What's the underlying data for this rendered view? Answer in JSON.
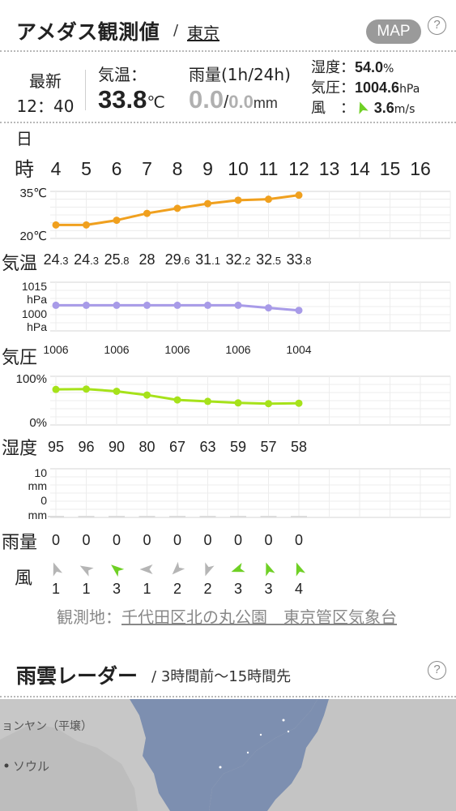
{
  "header": {
    "title": "アメダス観測値",
    "separator": "/",
    "location": "東京",
    "map_button": "MAP",
    "help": "?"
  },
  "summary": {
    "latest_label": "最新",
    "latest_time": "12：40",
    "temp_label": "気温：",
    "temp_value": "33.8",
    "temp_unit": "℃",
    "rain_label": "雨量(1h/24h)",
    "rain_1h": "0.0",
    "rain_slash": "/",
    "rain_24h": "0.0",
    "rain_unit": "mm",
    "humidity_label": "湿度：",
    "humidity_value": "54.0",
    "humidity_unit": "%",
    "pressure_label": "気圧：",
    "pressure_value": "1004.6",
    "pressure_unit": "hPa",
    "wind_label": "風　：",
    "wind_value": "3.6",
    "wind_unit": "m/s"
  },
  "chart_data": {
    "type": "line",
    "day_label": "日",
    "hour_label": "時",
    "hours": [
      "4",
      "5",
      "6",
      "7",
      "8",
      "9",
      "10",
      "11",
      "12",
      "13",
      "14",
      "15",
      "16"
    ],
    "temperature": {
      "row_label": "気温",
      "ytick_top": "35℃",
      "ytick_bottom": "20℃",
      "ylim": [
        20,
        35
      ],
      "color": "#f0a01e",
      "values": [
        24.3,
        24.3,
        25.8,
        28,
        29.6,
        31.1,
        32.2,
        32.5,
        33.8
      ],
      "labels": [
        {
          "i": "24",
          "d": ".3"
        },
        {
          "i": "24",
          "d": ".3"
        },
        {
          "i": "25",
          "d": ".8"
        },
        {
          "i": "28",
          "d": ""
        },
        {
          "i": "29",
          "d": ".6"
        },
        {
          "i": "31",
          "d": ".1"
        },
        {
          "i": "32",
          "d": ".2"
        },
        {
          "i": "32",
          "d": ".5"
        },
        {
          "i": "33",
          "d": ".8"
        }
      ]
    },
    "pressure": {
      "row_label": "気圧",
      "ytick_top": "1015",
      "ytick_top_unit": "hPa",
      "ytick_bottom": "1000",
      "ytick_bottom_unit": "hPa",
      "color": "#a89be8",
      "values": [
        1006,
        1006,
        1006,
        1006,
        1006,
        1006,
        1006,
        1005,
        1004
      ],
      "labels": [
        "1006",
        "",
        "1006",
        "",
        "1006",
        "",
        "1006",
        "",
        "1004"
      ]
    },
    "humidity": {
      "row_label": "湿度",
      "ytick_top": "100%",
      "ytick_bottom": "0%",
      "ylim": [
        0,
        100
      ],
      "color": "#a6e21a",
      "values": [
        95,
        96,
        90,
        80,
        67,
        63,
        59,
        57,
        58
      ],
      "labels": [
        "95",
        "96",
        "90",
        "80",
        "67",
        "63",
        "59",
        "57",
        "58"
      ]
    },
    "rainfall": {
      "row_label": "雨量",
      "ytick_top": "10",
      "ytick_top_unit": "mm",
      "ytick_bottom": "0",
      "ytick_bottom_unit": "mm",
      "values": [
        0,
        0,
        0,
        0,
        0,
        0,
        0,
        0,
        0
      ],
      "labels": [
        "0",
        "0",
        "0",
        "0",
        "0",
        "0",
        "0",
        "0",
        "0"
      ]
    },
    "wind": {
      "row_label": "風",
      "speeds": [
        "1",
        "1",
        "3",
        "1",
        "2",
        "2",
        "3",
        "3",
        "4"
      ],
      "directions_deg": [
        340,
        300,
        310,
        270,
        225,
        200,
        250,
        340,
        340
      ],
      "colors": [
        "#b5b5b5",
        "#b5b5b5",
        "#6fd025",
        "#b5b5b5",
        "#b5b5b5",
        "#b5b5b5",
        "#6fd025",
        "#6fd025",
        "#6fd025"
      ]
    }
  },
  "observation": {
    "label": "観測地：",
    "place": "千代田区北の丸公園　東京管区気象台"
  },
  "radar": {
    "title": "雨雲レーダー",
    "separator": "/",
    "subtitle": "3時間前〜15時間先",
    "help": "?",
    "map_labels": [
      "ョンヤン（平壌）",
      "ソウル"
    ]
  }
}
